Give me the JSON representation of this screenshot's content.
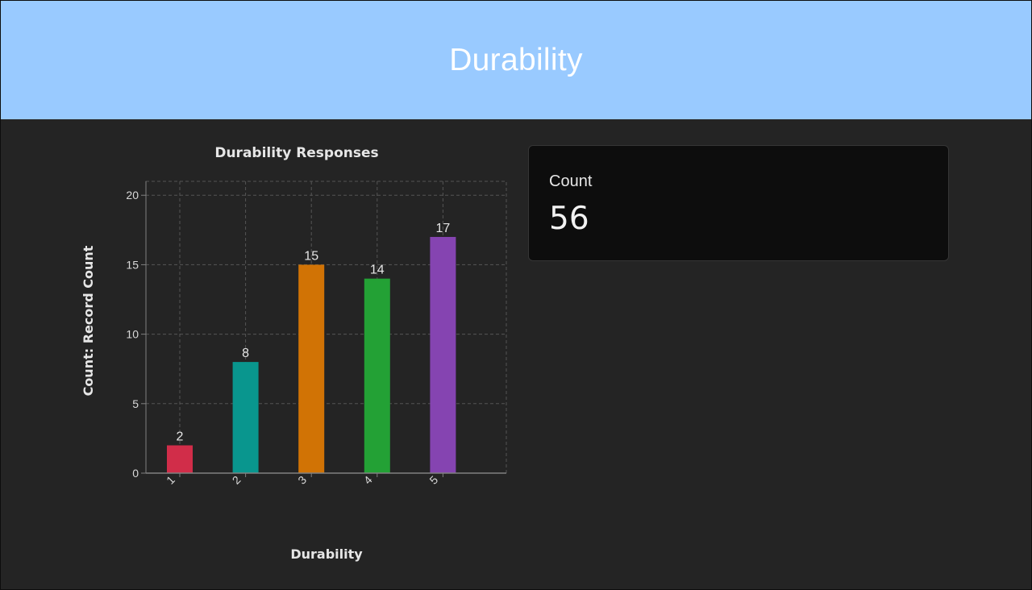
{
  "header": {
    "title": "Durability"
  },
  "metric": {
    "label": "Count",
    "value": "56"
  },
  "chart_data": {
    "type": "bar",
    "title": "Durability Responses",
    "xlabel": "Durability",
    "ylabel": "Count: Record Count",
    "categories": [
      "1",
      "2",
      "3",
      "4",
      "5"
    ],
    "values": [
      2,
      8,
      15,
      14,
      17
    ],
    "colors": [
      "#d12d49",
      "#09968e",
      "#d17305",
      "#23a135",
      "#8544b1"
    ],
    "ylim": [
      0,
      21
    ],
    "yticks": [
      0,
      5,
      10,
      15,
      20
    ],
    "grid": true,
    "legend": "none",
    "theme": {
      "background": "#242424",
      "grid_color": "#555555",
      "axis_color": "#808080",
      "text_color": "#e6e6e6"
    }
  }
}
